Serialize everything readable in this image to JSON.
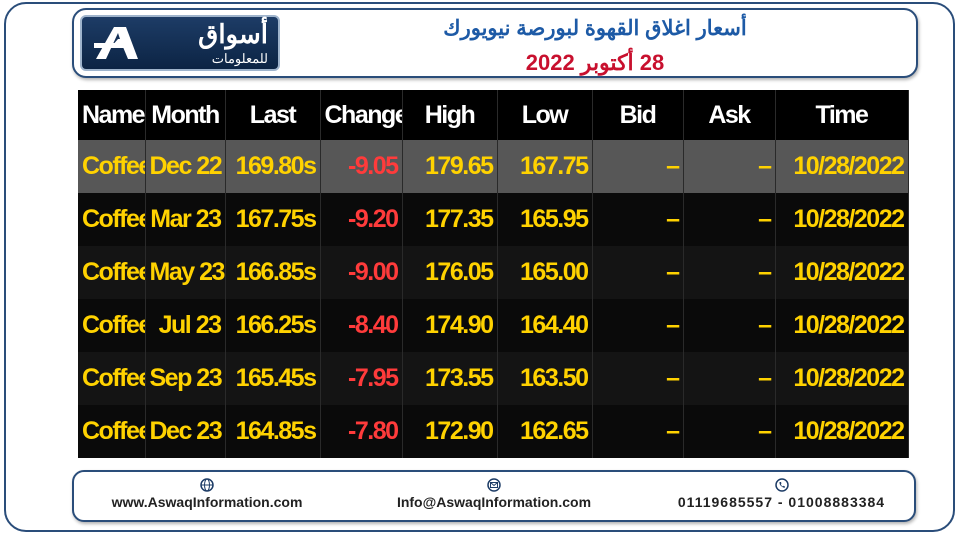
{
  "header": {
    "logo": {
      "name": "أسواق",
      "subtitle": "للمعلومات"
    },
    "title": "أسعار اغلاق القهوة لبورصة نيويورك",
    "date": "28 أكتوبر 2022"
  },
  "table": {
    "columns": [
      "Name",
      "Month",
      "Last",
      "Change",
      "High",
      "Low",
      "Bid",
      "Ask",
      "Time"
    ],
    "rows": [
      [
        "Coffee",
        "Dec 22",
        "169.80s",
        "-9.05",
        "179.65",
        "167.75",
        "–",
        "–",
        "10/28/2022"
      ],
      [
        "Coffee",
        "Mar 23",
        "167.75s",
        "-9.20",
        "177.35",
        "165.95",
        "–",
        "–",
        "10/28/2022"
      ],
      [
        "Coffee",
        "May 23",
        "166.85s",
        "-9.00",
        "176.05",
        "165.00",
        "–",
        "–",
        "10/28/2022"
      ],
      [
        "Coffee",
        "Jul 23",
        "166.25s",
        "-8.40",
        "174.90",
        "164.40",
        "–",
        "–",
        "10/28/2022"
      ],
      [
        "Coffee",
        "Sep 23",
        "165.45s",
        "-7.95",
        "173.55",
        "163.50",
        "–",
        "–",
        "10/28/2022"
      ],
      [
        "Coffee",
        "Dec 23",
        "164.85s",
        "-7.80",
        "172.90",
        "162.65",
        "–",
        "–",
        "10/28/2022"
      ]
    ]
  },
  "footer": {
    "website": "www.AswaqInformation.com",
    "email": "Info@AswaqInformation.com",
    "phones": "01119685557 - 01008883384"
  }
}
